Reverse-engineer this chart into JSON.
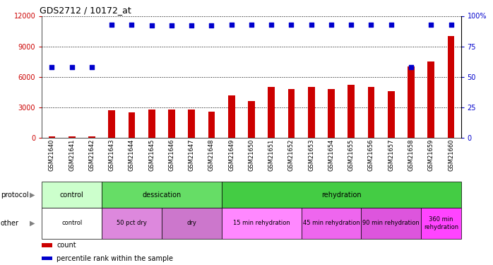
{
  "title": "GDS2712 / 10172_at",
  "samples": [
    "GSM21640",
    "GSM21641",
    "GSM21642",
    "GSM21643",
    "GSM21644",
    "GSM21645",
    "GSM21646",
    "GSM21647",
    "GSM21648",
    "GSM21649",
    "GSM21650",
    "GSM21651",
    "GSM21652",
    "GSM21653",
    "GSM21654",
    "GSM21655",
    "GSM21656",
    "GSM21657",
    "GSM21658",
    "GSM21659",
    "GSM21660"
  ],
  "counts": [
    120,
    150,
    130,
    2700,
    2500,
    2750,
    2800,
    2750,
    2600,
    4200,
    3600,
    5000,
    4800,
    5000,
    4800,
    5200,
    5000,
    4600,
    7000,
    7500,
    10000
  ],
  "percentile": [
    58,
    58,
    58,
    93,
    93,
    92,
    92,
    92,
    92,
    93,
    93,
    93,
    93,
    93,
    93,
    93,
    93,
    93,
    58,
    93,
    93
  ],
  "bar_color": "#cc0000",
  "dot_color": "#0000cc",
  "ylim_left": [
    0,
    12000
  ],
  "ylim_right": [
    0,
    100
  ],
  "yticks_left": [
    0,
    3000,
    6000,
    9000,
    12000
  ],
  "yticks_right": [
    0,
    25,
    50,
    75,
    100
  ],
  "protocol_groups": [
    {
      "label": "control",
      "start": 0,
      "end": 3,
      "color": "#ccffcc"
    },
    {
      "label": "dessication",
      "start": 3,
      "end": 9,
      "color": "#66dd66"
    },
    {
      "label": "rehydration",
      "start": 9,
      "end": 21,
      "color": "#44cc44"
    }
  ],
  "other_groups": [
    {
      "label": "control",
      "start": 0,
      "end": 3,
      "color": "#ffffff"
    },
    {
      "label": "50 pct dry",
      "start": 3,
      "end": 6,
      "color": "#dd88dd"
    },
    {
      "label": "dry",
      "start": 6,
      "end": 9,
      "color": "#cc77cc"
    },
    {
      "label": "15 min rehydration",
      "start": 9,
      "end": 13,
      "color": "#ff88ff"
    },
    {
      "label": "45 min rehydration",
      "start": 13,
      "end": 16,
      "color": "#ee66ee"
    },
    {
      "label": "90 min rehydration",
      "start": 16,
      "end": 19,
      "color": "#dd55dd"
    },
    {
      "label": "360 min\nrehydration",
      "start": 19,
      "end": 21,
      "color": "#ff44ff"
    }
  ],
  "tick_color_left": "#cc0000",
  "tick_color_right": "#0000cc",
  "background_color": "#ffffff",
  "protocol_label": "protocol",
  "other_label": "other",
  "legend_items": [
    {
      "label": "count",
      "color": "#cc0000"
    },
    {
      "label": "percentile rank within the sample",
      "color": "#0000cc"
    }
  ]
}
